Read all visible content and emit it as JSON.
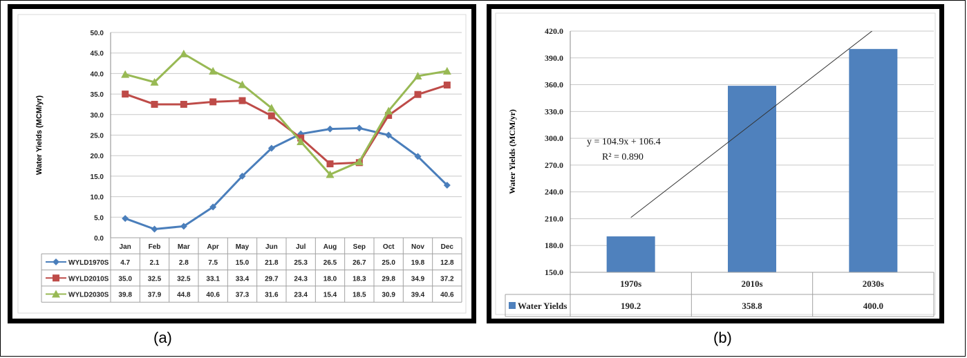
{
  "captions": {
    "a": "(a)",
    "b": "(b)"
  },
  "chart_data": [
    {
      "type": "line",
      "ylabel": "Water Yields (MCM/yr)",
      "ylim": [
        0,
        50
      ],
      "ytick_step": 5,
      "ytick_decimals": 1,
      "grid": true,
      "legend": "data-table-bottom",
      "categories": [
        "Jan",
        "Feb",
        "Mar",
        "Apr",
        "May",
        "Jun",
        "Jul",
        "Aug",
        "Sep",
        "Oct",
        "Nov",
        "Dec"
      ],
      "series": [
        {
          "name": "WYLD1970S",
          "color": "#4a7ebb",
          "marker": "diamond",
          "values": [
            4.7,
            2.1,
            2.8,
            7.5,
            15.0,
            21.8,
            25.3,
            26.5,
            26.7,
            25.0,
            19.8,
            12.8
          ]
        },
        {
          "name": "WYLD2010S",
          "color": "#be4b48",
          "marker": "square",
          "values": [
            35.0,
            32.5,
            32.5,
            33.1,
            33.4,
            29.7,
            24.3,
            18.0,
            18.3,
            29.8,
            34.9,
            37.2
          ]
        },
        {
          "name": "WYLD2030S",
          "color": "#98b954",
          "marker": "triangle",
          "values": [
            39.8,
            37.9,
            44.8,
            40.6,
            37.3,
            31.6,
            23.4,
            15.4,
            18.5,
            30.9,
            39.4,
            40.6
          ]
        }
      ]
    },
    {
      "type": "bar",
      "ylabel": "Water Yields (MCM/yr)",
      "ylim": [
        150,
        420
      ],
      "ytick_step": 30,
      "ytick_decimals": 1,
      "grid": true,
      "legend": "data-table-bottom",
      "categories": [
        "1970s",
        "2010s",
        "2030s"
      ],
      "series": [
        {
          "name": "Water Yields",
          "color": "#4f81bd",
          "values": [
            190.2,
            358.8,
            400.0
          ]
        }
      ],
      "trendline": {
        "equation": "y = 104.9x + 106.4",
        "r2": "R² = 0.890",
        "slope": 104.9,
        "intercept": 106.4
      }
    }
  ]
}
